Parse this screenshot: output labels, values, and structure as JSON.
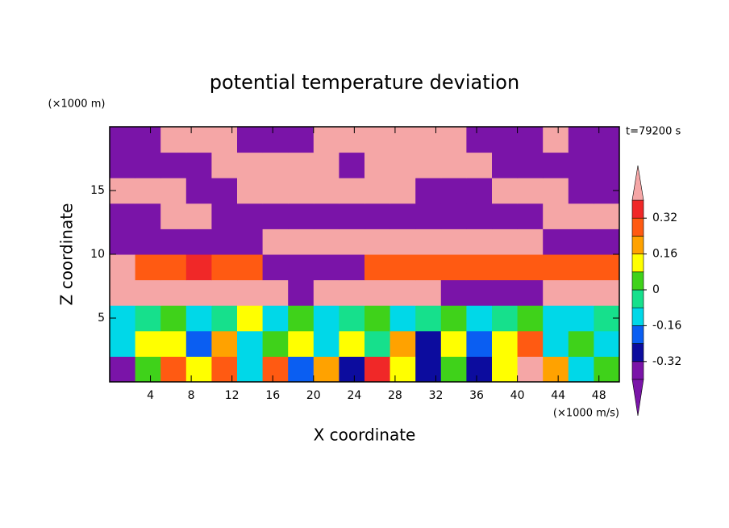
{
  "chart_data": {
    "type": "contour",
    "title": "potential temperature deviation",
    "x_label": "X coordinate",
    "y_label": "Z coordinate",
    "x_unit": "(×1000 m/s)",
    "y_unit": "(×1000 m)",
    "time_label": "t=79200 s",
    "xlim": [
      0,
      50
    ],
    "ylim": [
      0,
      20
    ],
    "xticks": [
      4,
      8,
      12,
      16,
      20,
      24,
      28,
      32,
      36,
      40,
      44,
      48
    ],
    "yticks": [
      5,
      10,
      15
    ],
    "grid": false,
    "x": [
      1.25,
      3.75,
      6.25,
      8.75,
      11.25,
      13.75,
      16.25,
      18.75,
      21.25,
      23.75,
      26.25,
      28.75,
      31.25,
      33.75,
      36.25,
      38.75,
      41.25,
      43.75,
      46.25,
      48.75
    ],
    "y": [
      1,
      3,
      5,
      7,
      9,
      11,
      13,
      15,
      17,
      19
    ],
    "z": [
      [
        -0.35,
        0.05,
        0.3,
        0.1,
        0.25,
        -0.1,
        0.3,
        -0.2,
        0.2,
        -0.3,
        0.35,
        0.1,
        -0.25,
        0.05,
        -0.3,
        0.15,
        0.45,
        0.2,
        -0.1,
        0.05
      ],
      [
        -0.1,
        0.1,
        0.12,
        -0.2,
        0.2,
        -0.15,
        0.05,
        0.15,
        -0.1,
        0.1,
        -0.05,
        0.2,
        -0.3,
        0.1,
        -0.2,
        0.1,
        0.3,
        -0.1,
        0.05,
        -0.15
      ],
      [
        -0.1,
        -0.05,
        0.05,
        -0.1,
        -0.05,
        0.1,
        -0.1,
        0.02,
        -0.15,
        -0.05,
        0.05,
        -0.1,
        -0.05,
        0,
        -0.1,
        -0.05,
        0.05,
        -0.1,
        -0.15,
        -0.05
      ],
      [
        0.45,
        0.45,
        0.45,
        0.45,
        0.45,
        0.45,
        0.45,
        -0.45,
        0.45,
        0.45,
        0.45,
        0.45,
        0.45,
        -0.45,
        -0.45,
        -0.45,
        -0.45,
        0.45,
        0.45,
        0.45
      ],
      [
        0.45,
        0.3,
        0.3,
        0.35,
        0.3,
        0.3,
        -0.45,
        -0.45,
        -0.45,
        -0.45,
        0.3,
        0.3,
        0.3,
        0.3,
        0.3,
        0.3,
        0.3,
        0.3,
        0.3,
        0.3
      ],
      [
        -0.45,
        -0.45,
        -0.45,
        -0.45,
        -0.45,
        -0.45,
        0.45,
        0.45,
        0.45,
        0.45,
        0.45,
        0.45,
        0.45,
        0.45,
        0.45,
        0.45,
        0.45,
        -0.45,
        -0.45,
        -0.45
      ],
      [
        -0.45,
        -0.45,
        0.45,
        0.45,
        -0.45,
        -0.45,
        -0.45,
        -0.45,
        -0.45,
        -0.45,
        -0.45,
        -0.45,
        -0.45,
        -0.45,
        -0.45,
        -0.45,
        -0.45,
        0.45,
        0.45,
        0.45
      ],
      [
        0.45,
        0.45,
        0.45,
        -0.45,
        -0.45,
        0.45,
        0.45,
        0.45,
        0.45,
        0.45,
        0.45,
        0.45,
        -0.45,
        -0.45,
        -0.45,
        0.45,
        0.45,
        0.45,
        -0.45,
        -0.45
      ],
      [
        -0.45,
        -0.45,
        -0.45,
        -0.45,
        0.45,
        0.45,
        0.45,
        0.45,
        0.45,
        -0.45,
        0.45,
        0.45,
        0.45,
        0.45,
        0.45,
        -0.45,
        -0.45,
        -0.45,
        -0.45,
        -0.45
      ],
      [
        -0.45,
        -0.45,
        0.45,
        0.45,
        0.45,
        -0.45,
        -0.45,
        -0.45,
        0.45,
        0.45,
        0.45,
        0.45,
        0.45,
        0.45,
        -0.45,
        -0.45,
        -0.45,
        0.45,
        -0.45,
        -0.45
      ]
    ],
    "levels": [
      -0.4,
      -0.32,
      -0.24,
      -0.16,
      -0.08,
      0,
      0.08,
      0.16,
      0.24,
      0.32,
      0.4
    ],
    "colors": [
      "#7a14a8",
      "#7a14a8",
      "#0c0c9e",
      "#0a5ef2",
      "#00d8e8",
      "#16e08c",
      "#3fd21a",
      "#ffff00",
      "#ffa200",
      "#ff5a12",
      "#f02828",
      "#f5a6a6"
    ],
    "colorbar_ticks": [
      -0.32,
      -0.16,
      0,
      0.16,
      0.32
    ]
  }
}
